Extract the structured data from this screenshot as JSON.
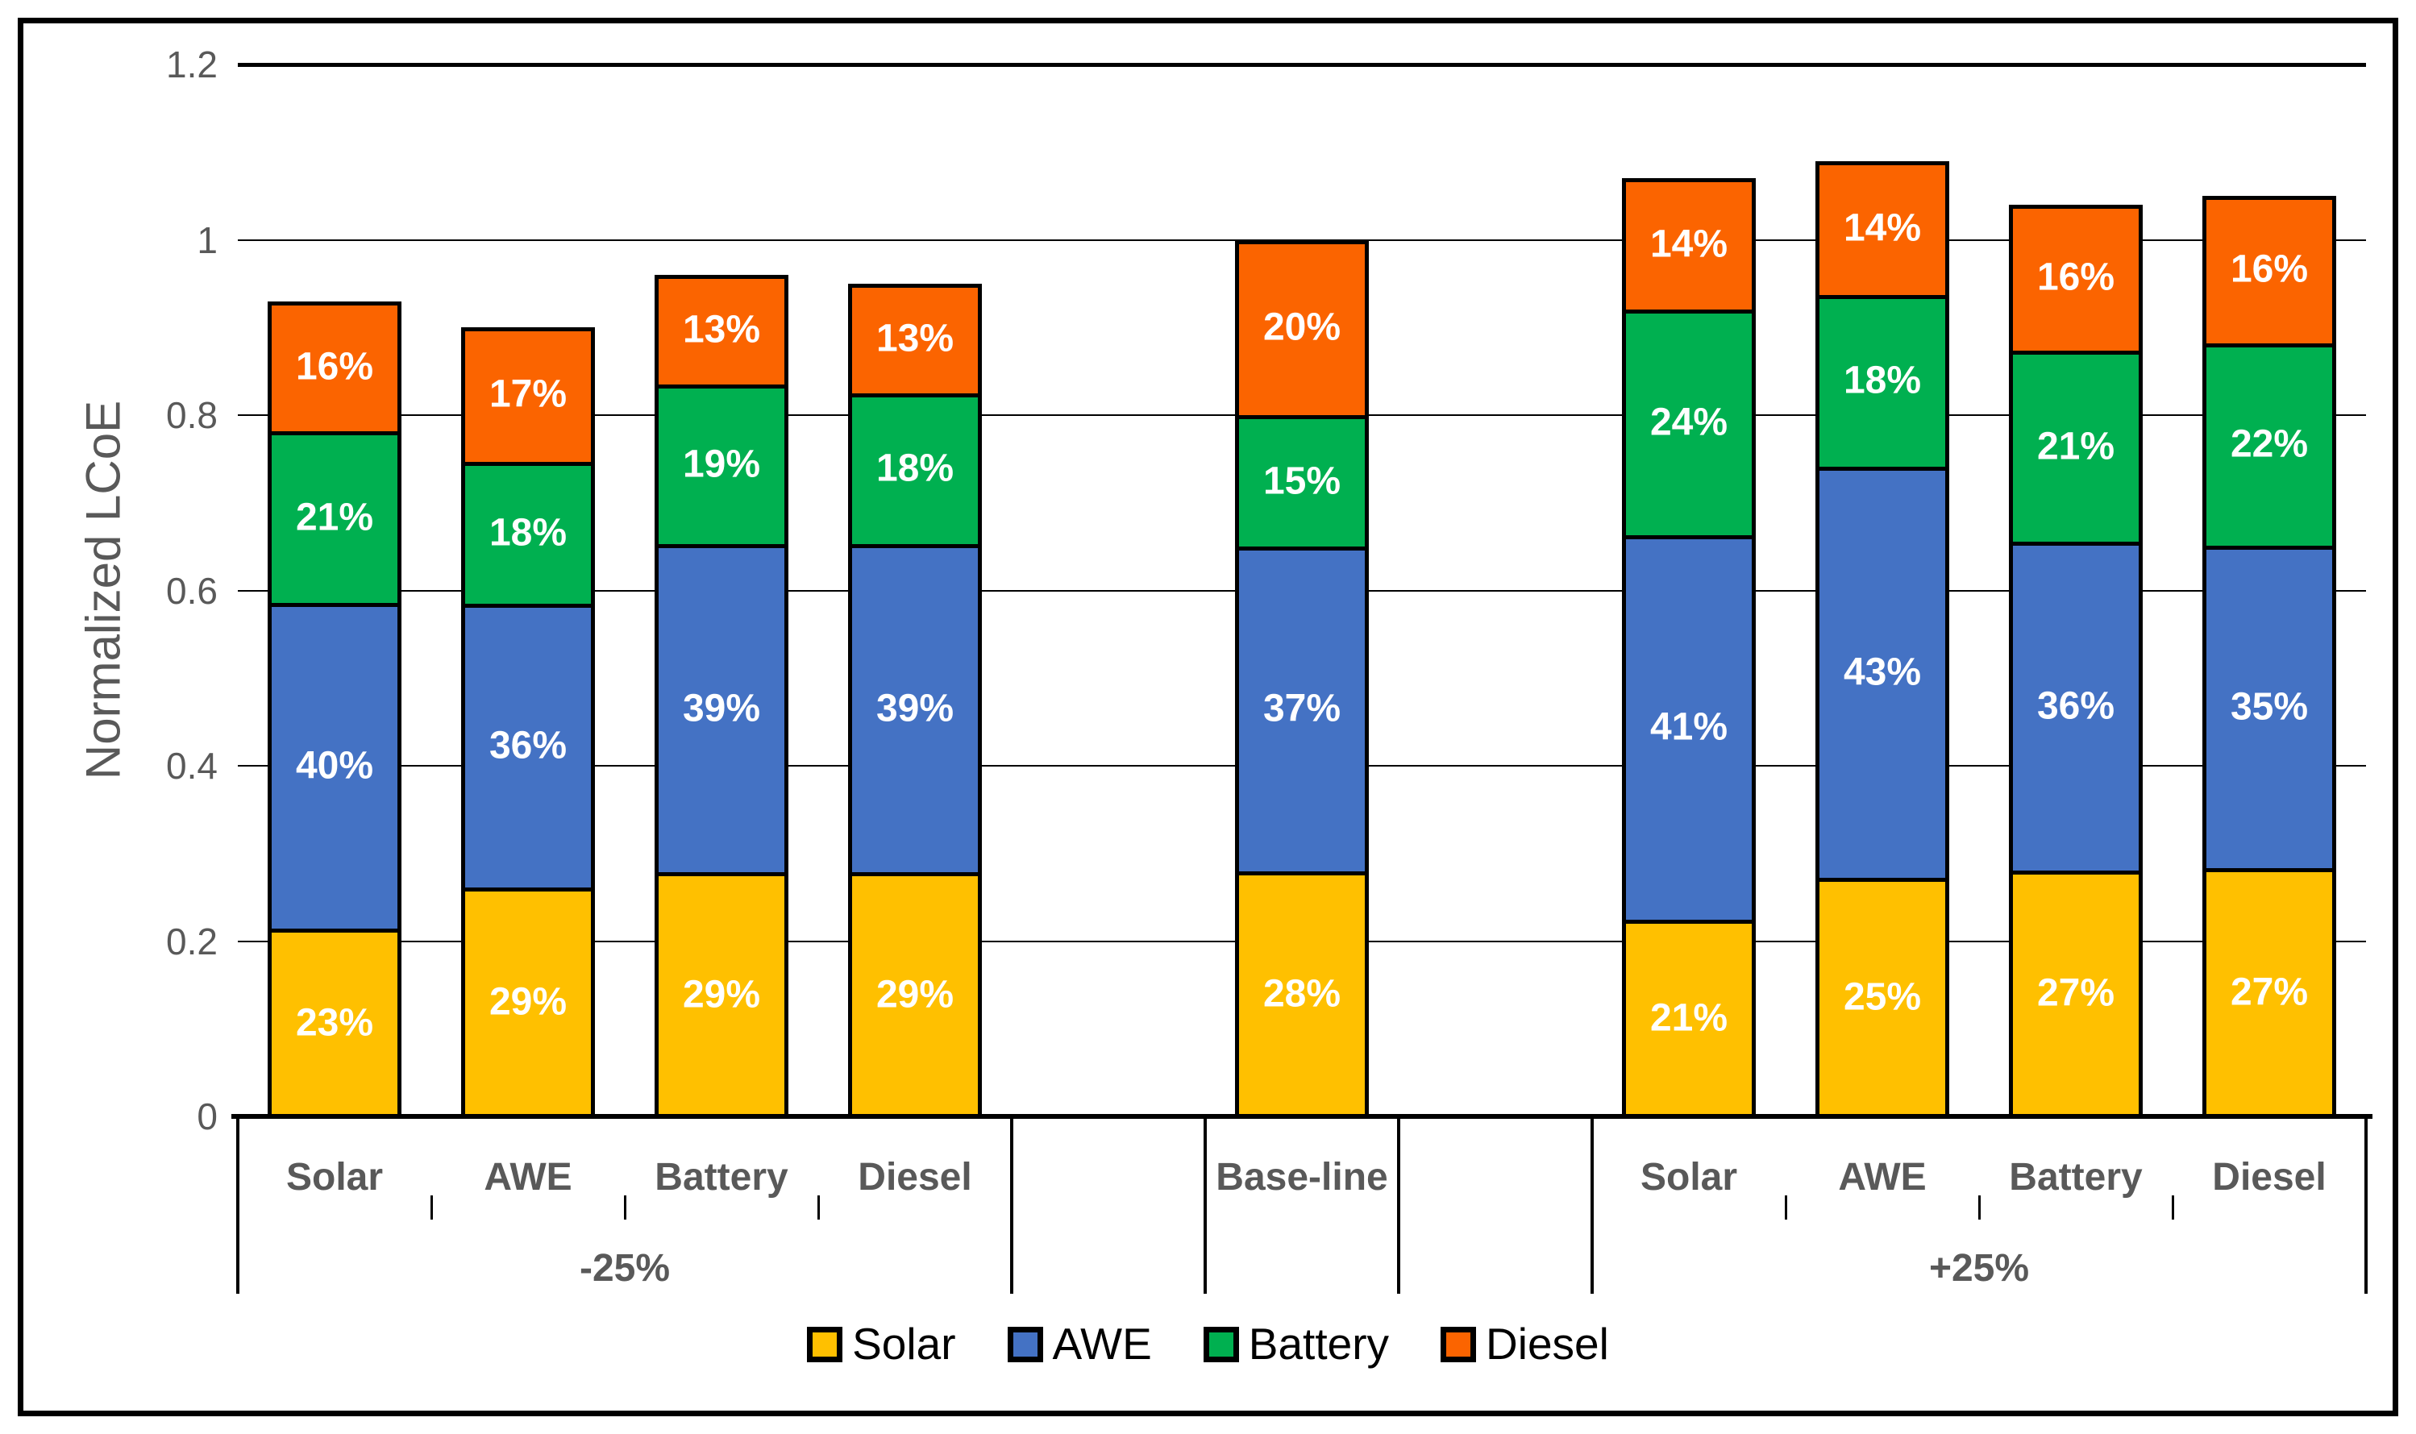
{
  "chart_data": {
    "type": "bar",
    "stacked": true,
    "title": "",
    "xlabel": "",
    "ylabel": "Normalized LCoE",
    "ylim": [
      0,
      1.2
    ],
    "grid": "horizontal",
    "legend_position": "bottom",
    "yticks": [
      {
        "v": 0,
        "label": "0"
      },
      {
        "v": 0.2,
        "label": "0.2"
      },
      {
        "v": 0.4,
        "label": "0.4"
      },
      {
        "v": 0.6,
        "label": "0.6"
      },
      {
        "v": 0.8,
        "label": "0.8"
      },
      {
        "v": 1,
        "label": "1"
      },
      {
        "v": 1.2,
        "label": "1.2"
      }
    ],
    "series": [
      "Solar",
      "AWE",
      "Battery",
      "Diesel"
    ],
    "colors": {
      "Solar": "#FFC000",
      "AWE": "#4472C4",
      "Battery": "#00B050",
      "Diesel": "#FB6400"
    },
    "label_suffix": "%",
    "groups": [
      {
        "label": "-25%",
        "span": [
          0,
          4
        ],
        "bars": [
          {
            "category": "Solar",
            "slot": 0,
            "total": 0.93,
            "segments": [
              23,
              40,
              21,
              16
            ]
          },
          {
            "category": "AWE",
            "slot": 1,
            "total": 0.9,
            "segments": [
              29,
              36,
              18,
              17
            ]
          },
          {
            "category": "Battery",
            "slot": 2,
            "total": 0.96,
            "segments": [
              29,
              39,
              19,
              13
            ]
          },
          {
            "category": "Diesel",
            "slot": 3,
            "total": 0.95,
            "segments": [
              29,
              39,
              18,
              13
            ]
          }
        ]
      },
      {
        "label": "",
        "span": [
          5,
          6
        ],
        "bars": [
          {
            "category": "Base-line",
            "slot": 5,
            "total": 1.0,
            "segments": [
              28,
              37,
              15,
              20
            ]
          }
        ]
      },
      {
        "label": "+25%",
        "span": [
          7,
          11
        ],
        "bars": [
          {
            "category": "Solar",
            "slot": 7,
            "total": 1.07,
            "segments": [
              21,
              41,
              24,
              14
            ]
          },
          {
            "category": "AWE",
            "slot": 8,
            "total": 1.09,
            "segments": [
              25,
              43,
              18,
              14
            ]
          },
          {
            "category": "Battery",
            "slot": 9,
            "total": 1.04,
            "segments": [
              27,
              36,
              21,
              16
            ]
          },
          {
            "category": "Diesel",
            "slot": 10,
            "total": 1.05,
            "segments": [
              27,
              35,
              22,
              16
            ]
          }
        ]
      }
    ],
    "dividers": [
      0,
      4,
      5,
      6,
      7,
      11
    ],
    "minor_ticks": [
      1,
      2,
      3,
      8,
      9,
      10
    ],
    "legend": [
      "Solar",
      "AWE",
      "Battery",
      "Diesel"
    ]
  }
}
